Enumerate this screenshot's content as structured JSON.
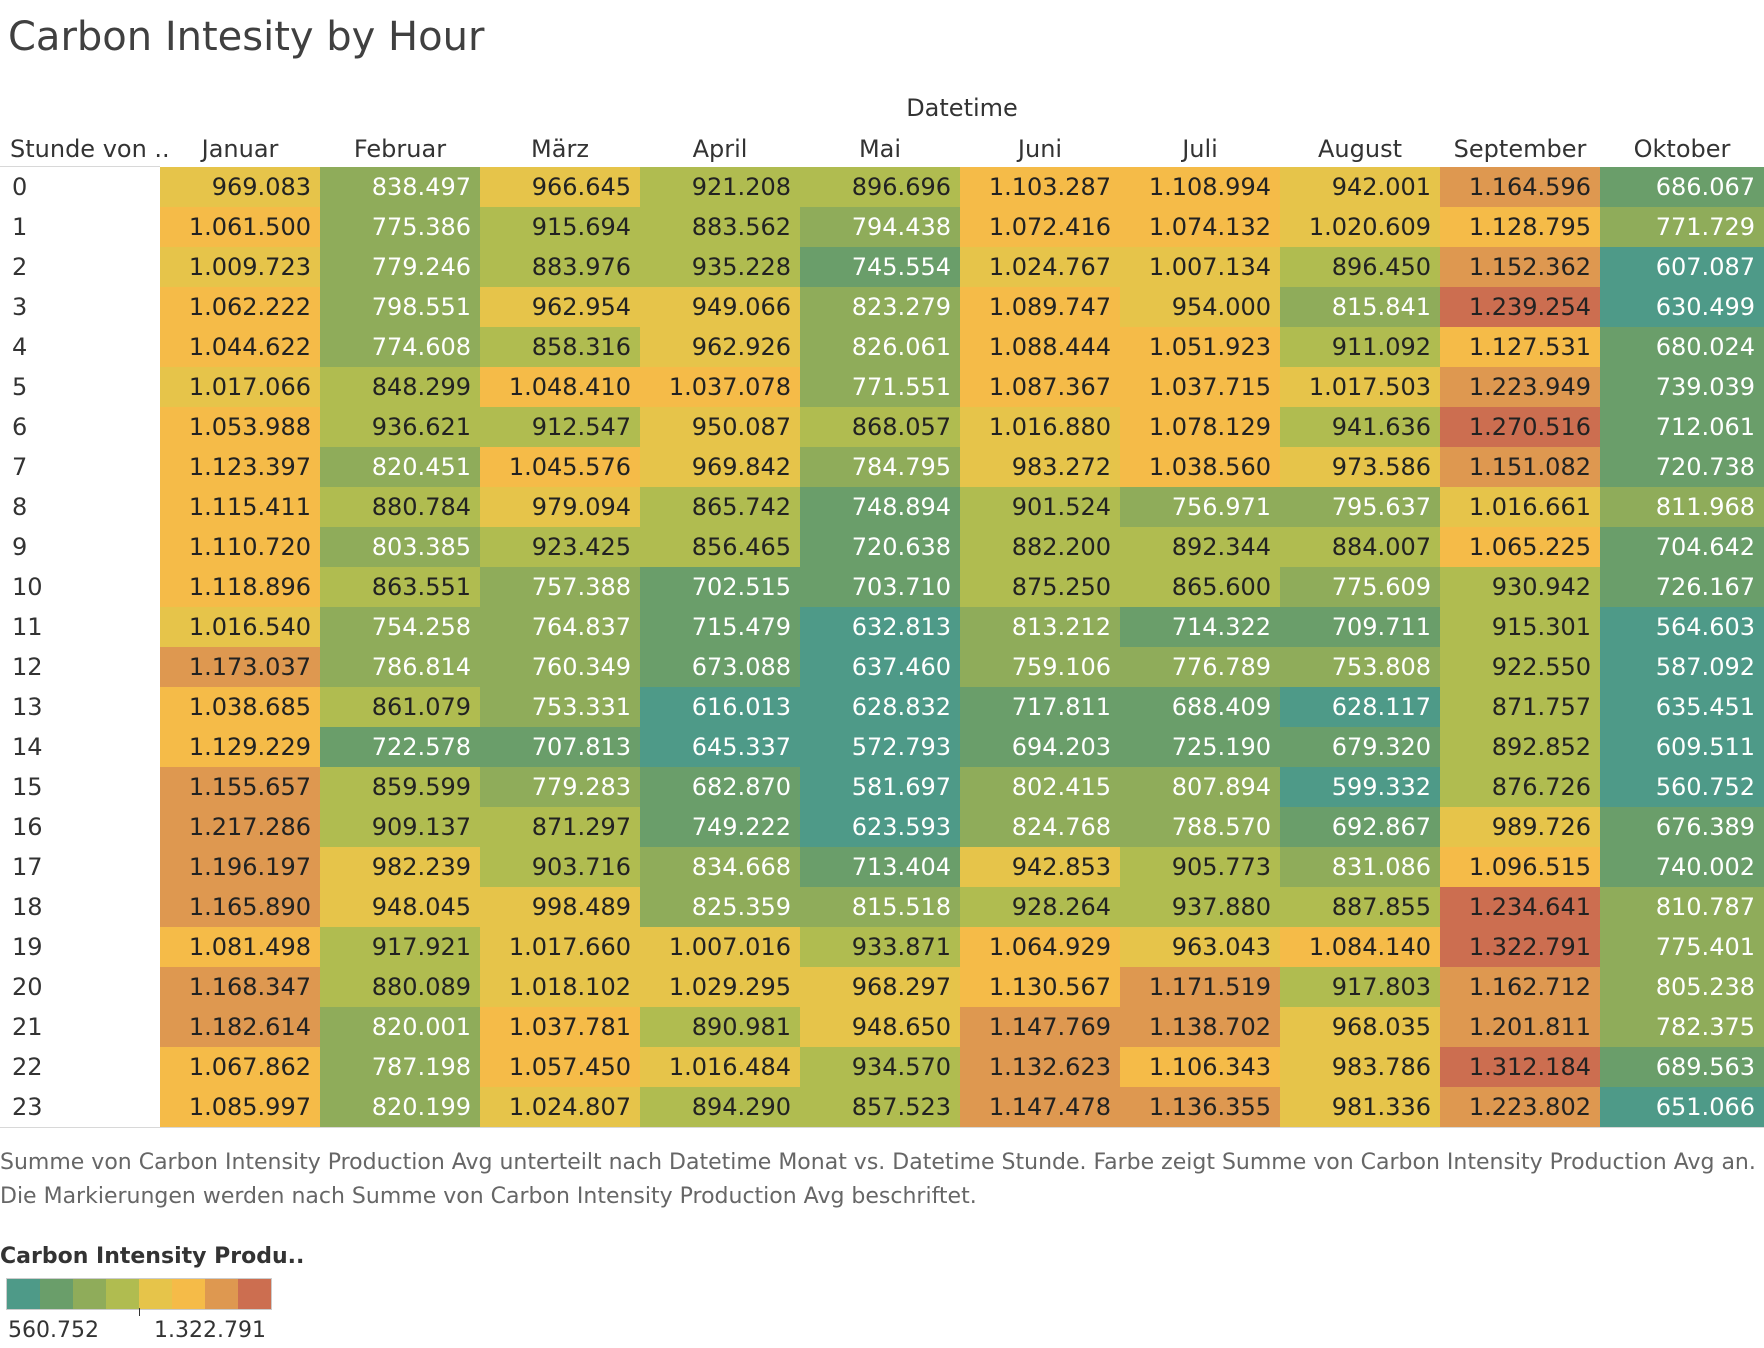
{
  "page": {
    "caption": "Summe von Carbon Intensity Production Avg unterteilt nach Datetime Monat vs. Datetime Stunde. Farbe zeigt Summe von Carbon Intensity Production Avg an. Die Markierungen werden nach Summe von Carbon Intensity Production Avg beschriftet."
  },
  "chart_data": {
    "type": "heatmap",
    "title": "Carbon Intesity by Hour",
    "column_group_label": "Datetime",
    "row_header": "Stunde von ..",
    "columns": [
      "Januar",
      "Februar",
      "März",
      "April",
      "Mai",
      "Juni",
      "Juli",
      "August",
      "September",
      "Oktober"
    ],
    "rows": [
      "0",
      "1",
      "2",
      "3",
      "4",
      "5",
      "6",
      "7",
      "8",
      "9",
      "10",
      "11",
      "12",
      "13",
      "14",
      "15",
      "16",
      "17",
      "18",
      "19",
      "20",
      "21",
      "22",
      "23"
    ],
    "values": [
      [
        969083,
        838497,
        966645,
        921208,
        896696,
        1103287,
        1108994,
        942001,
        1164596,
        686067
      ],
      [
        1061500,
        775386,
        915694,
        883562,
        794438,
        1072416,
        1074132,
        1020609,
        1128795,
        771729
      ],
      [
        1009723,
        779246,
        883976,
        935228,
        745554,
        1024767,
        1007134,
        896450,
        1152362,
        607087
      ],
      [
        1062222,
        798551,
        962954,
        949066,
        823279,
        1089747,
        954000,
        815841,
        1239254,
        630499
      ],
      [
        1044622,
        774608,
        858316,
        962926,
        826061,
        1088444,
        1051923,
        911092,
        1127531,
        680024
      ],
      [
        1017066,
        848299,
        1048410,
        1037078,
        771551,
        1087367,
        1037715,
        1017503,
        1223949,
        739039
      ],
      [
        1053988,
        936621,
        912547,
        950087,
        868057,
        1016880,
        1078129,
        941636,
        1270516,
        712061
      ],
      [
        1123397,
        820451,
        1045576,
        969842,
        784795,
        983272,
        1038560,
        973586,
        1151082,
        720738
      ],
      [
        1115411,
        880784,
        979094,
        865742,
        748894,
        901524,
        756971,
        795637,
        1016661,
        811968
      ],
      [
        1110720,
        803385,
        923425,
        856465,
        720638,
        882200,
        892344,
        884007,
        1065225,
        704642
      ],
      [
        1118896,
        863551,
        757388,
        702515,
        703710,
        875250,
        865600,
        775609,
        930942,
        726167
      ],
      [
        1016540,
        754258,
        764837,
        715479,
        632813,
        813212,
        714322,
        709711,
        915301,
        564603
      ],
      [
        1173037,
        786814,
        760349,
        673088,
        637460,
        759106,
        776789,
        753808,
        922550,
        587092
      ],
      [
        1038685,
        861079,
        753331,
        616013,
        628832,
        717811,
        688409,
        628117,
        871757,
        635451
      ],
      [
        1129229,
        722578,
        707813,
        645337,
        572793,
        694203,
        725190,
        679320,
        892852,
        609511
      ],
      [
        1155657,
        859599,
        779283,
        682870,
        581697,
        802415,
        807894,
        599332,
        876726,
        560752
      ],
      [
        1217286,
        909137,
        871297,
        749222,
        623593,
        824768,
        788570,
        692867,
        989726,
        676389
      ],
      [
        1196197,
        982239,
        903716,
        834668,
        713404,
        942853,
        905773,
        831086,
        1096515,
        740002
      ],
      [
        1165890,
        948045,
        998489,
        825359,
        815518,
        928264,
        937880,
        887855,
        1234641,
        810787
      ],
      [
        1081498,
        917921,
        1017660,
        1007016,
        933871,
        1064929,
        963043,
        1084140,
        1322791,
        775401
      ],
      [
        1168347,
        880089,
        1018102,
        1029295,
        968297,
        1130567,
        1171519,
        917803,
        1162712,
        805238
      ],
      [
        1182614,
        820001,
        1037781,
        890981,
        948650,
        1147769,
        1138702,
        968035,
        1201811,
        782375
      ],
      [
        1067862,
        787198,
        1057450,
        1016484,
        934570,
        1132623,
        1106343,
        983786,
        1312184,
        689563
      ],
      [
        1085997,
        820199,
        1024807,
        894290,
        857523,
        1147478,
        1136355,
        981336,
        1223802,
        651066
      ]
    ],
    "color_scale": {
      "min": 560752,
      "max": 1322791,
      "steps": [
        "#4e9a88",
        "#6a9e6a",
        "#8fac5a",
        "#b0bc50",
        "#e6c44a",
        "#f5bb48",
        "#de9850",
        "#cc6e50"
      ]
    },
    "legend": {
      "title": "Carbon Intensity Produ..",
      "min_label": "560.752",
      "max_label": "1.322.791"
    }
  }
}
